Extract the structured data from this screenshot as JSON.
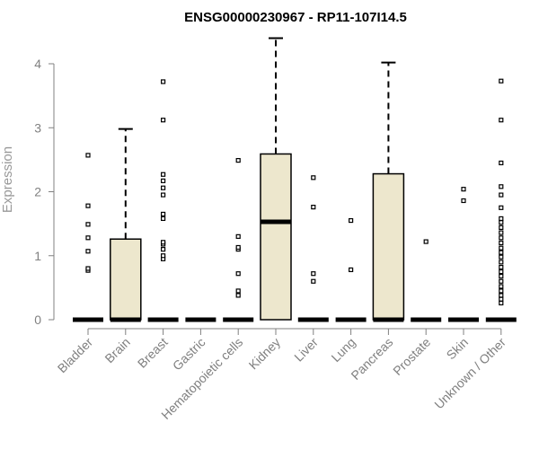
{
  "chart_data": {
    "type": "boxplot",
    "title": "ENSG00000230967 - RP11-107I14.5",
    "ylabel": "Expression",
    "xlabel": "",
    "ylim": [
      0,
      4.4
    ],
    "yticks": [
      0,
      1,
      2,
      3,
      4
    ],
    "box_color": "#ede7cd",
    "categories": [
      "Bladder",
      "Brain",
      "Breast",
      "Gastric",
      "Hematopoietic cells",
      "Kidney",
      "Liver",
      "Lung",
      "Pancreas",
      "Prostate",
      "Skin",
      "Unknown / Other"
    ],
    "boxes": [
      {
        "min": 0,
        "q1": 0,
        "median": 0,
        "q3": 0,
        "max": 0,
        "outliers": [
          0.77,
          0.8,
          1.07,
          1.28,
          1.49,
          1.78,
          2.57
        ]
      },
      {
        "min": 0,
        "q1": 0,
        "median": 0,
        "q3": 1.26,
        "max": 2.98,
        "outliers": []
      },
      {
        "min": 0,
        "q1": 0,
        "median": 0,
        "q3": 0,
        "max": 0,
        "outliers": [
          0.95,
          1.0,
          1.1,
          1.18,
          1.21,
          1.58,
          1.65,
          1.95,
          2.06,
          2.17,
          2.27,
          3.12,
          3.72
        ]
      },
      {
        "min": 0,
        "q1": 0,
        "median": 0,
        "q3": 0,
        "max": 0,
        "outliers": []
      },
      {
        "min": 0,
        "q1": 0,
        "median": 0,
        "q3": 0,
        "max": 0,
        "outliers": [
          0.38,
          0.45,
          0.72,
          1.1,
          1.13,
          1.3,
          2.49
        ]
      },
      {
        "min": 0,
        "q1": 0,
        "median": 1.53,
        "q3": 2.59,
        "max": 4.4,
        "outliers": []
      },
      {
        "min": 0,
        "q1": 0,
        "median": 0,
        "q3": 0,
        "max": 0,
        "outliers": [
          0.6,
          0.72,
          1.76,
          2.22
        ]
      },
      {
        "min": 0,
        "q1": 0,
        "median": 0,
        "q3": 0,
        "max": 0,
        "outliers": [
          0.78,
          1.55
        ]
      },
      {
        "min": 0,
        "q1": 0,
        "median": 0,
        "q3": 2.28,
        "max": 4.02,
        "outliers": []
      },
      {
        "min": 0,
        "q1": 0,
        "median": 0,
        "q3": 0,
        "max": 0,
        "outliers": [
          1.22
        ]
      },
      {
        "min": 0,
        "q1": 0,
        "median": 0,
        "q3": 0,
        "max": 0,
        "outliers": [
          1.86,
          2.04
        ]
      },
      {
        "min": 0,
        "q1": 0,
        "median": 0,
        "q3": 0,
        "max": 0,
        "outliers": [
          0.26,
          0.32,
          0.38,
          0.45,
          0.52,
          0.6,
          0.68,
          0.75,
          0.82,
          0.9,
          0.98,
          1.05,
          1.12,
          1.2,
          1.28,
          1.36,
          1.44,
          1.52,
          1.58,
          1.75,
          1.95,
          2.08,
          2.45,
          3.12,
          3.73
        ]
      }
    ]
  }
}
